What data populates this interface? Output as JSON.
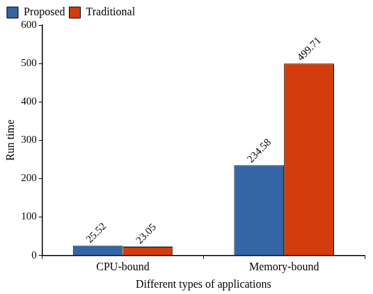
{
  "chart_data": {
    "type": "bar",
    "x_label": "Different types of applications",
    "y_label": "Run time",
    "categories": [
      "CPU-bound",
      "Memory-bound"
    ],
    "series": [
      {
        "name": "Proposed",
        "color": "#3465a4",
        "values": [
          25.52,
          234.58
        ]
      },
      {
        "name": "Traditional",
        "color": "#d33c0c",
        "values": [
          23.05,
          499.71
        ]
      }
    ],
    "ylim": [
      0,
      600
    ],
    "yticks": [
      0,
      100,
      200,
      300,
      400,
      500,
      600
    ],
    "grid": false,
    "legend": "upper left",
    "data_labels": true
  }
}
